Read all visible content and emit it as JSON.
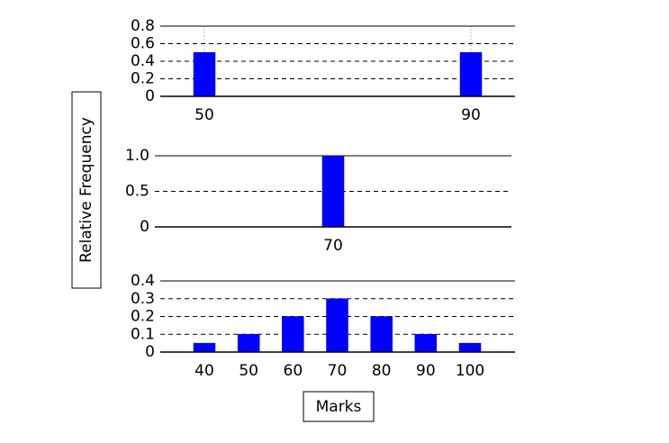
{
  "shared_labels": {
    "ylabel": "Relative Frequency",
    "xlabel": "Marks"
  },
  "chart_data": [
    {
      "type": "bar",
      "x": [
        50,
        90
      ],
      "values": [
        0.5,
        0.5
      ],
      "ylim": [
        0,
        0.8
      ],
      "yticks": [
        "0",
        "0.2",
        "0.4",
        "0.6",
        "0.8"
      ],
      "xticks": [
        "50",
        "90"
      ],
      "grid": "dashed horizontal",
      "bar_color": "#0000ff"
    },
    {
      "type": "bar",
      "x": [
        70
      ],
      "values": [
        1.0
      ],
      "ylim": [
        0,
        1.0
      ],
      "yticks": [
        "0",
        "0.5",
        "1.0"
      ],
      "xticks": [
        "70"
      ],
      "grid": "dashed horizontal",
      "bar_color": "#0000ff"
    },
    {
      "type": "bar",
      "x": [
        40,
        50,
        60,
        70,
        80,
        90,
        100
      ],
      "values": [
        0.05,
        0.1,
        0.2,
        0.3,
        0.2,
        0.1,
        0.05
      ],
      "ylim": [
        0,
        0.4
      ],
      "yticks": [
        "0",
        "0.1",
        "0.2",
        "0.3",
        "0.4"
      ],
      "xticks": [
        "40",
        "50",
        "60",
        "70",
        "80",
        "90",
        "100"
      ],
      "grid": "dashed horizontal",
      "bar_color": "#0000ff"
    }
  ]
}
